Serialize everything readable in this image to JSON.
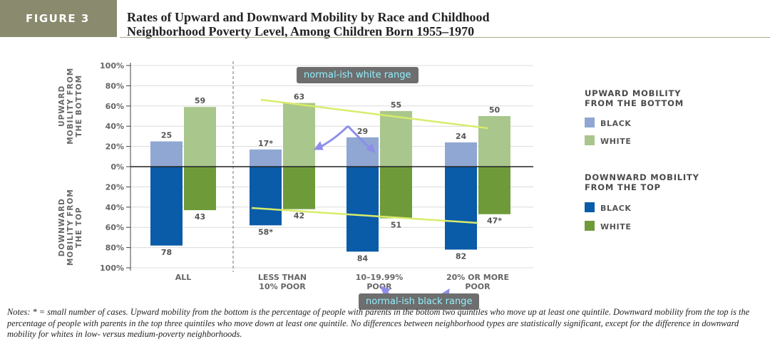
{
  "figure": {
    "label": "FIGURE 3",
    "title_line1": "Rates of Upward and Downward Mobility by Race and Childhood",
    "title_line2": "Neighborhood Poverty Level, Among Children Born 1955–1970"
  },
  "chart_data": {
    "type": "bar",
    "categories": [
      [
        "ALL"
      ],
      [
        "LESS THAN",
        "10% POOR"
      ],
      [
        "10–19.99%",
        "POOR"
      ],
      [
        "20% OR MORE",
        "POOR"
      ]
    ],
    "y_axis": {
      "ticks": [
        "100%",
        "80%",
        "60%",
        "40%",
        "20%",
        "0%",
        "20%",
        "40%",
        "60%",
        "80%",
        "100%"
      ],
      "upper_label": [
        "UPWARD",
        "MOBILITY FROM",
        "THE BOTTOM"
      ],
      "lower_label": [
        "DOWNWARD",
        "MOBILITY FROM",
        "THE TOP"
      ],
      "ylim": [
        -100,
        100
      ]
    },
    "upward": {
      "black": [
        25,
        17,
        29,
        24
      ],
      "white": [
        59,
        63,
        55,
        50
      ],
      "black_labels": [
        "25",
        "17*",
        "29",
        "24"
      ],
      "white_labels": [
        "59",
        "63",
        "55",
        "50"
      ]
    },
    "downward": {
      "black": [
        78,
        58,
        84,
        82
      ],
      "white": [
        43,
        42,
        51,
        47
      ],
      "black_labels": [
        "78",
        "58*",
        "84",
        "82"
      ],
      "white_labels": [
        "43",
        "42",
        "51",
        "47*"
      ]
    },
    "legend": {
      "upward_title": [
        "UPWARD MOBILITY",
        "FROM THE BOTTOM"
      ],
      "downward_title": [
        "DOWNWARD MOBILITY",
        "FROM THE TOP"
      ],
      "black_label": "BLACK",
      "white_label": "WHITE"
    },
    "colors": {
      "up_black": "#8fa7d2",
      "up_white": "#a9c68c",
      "down_black": "#0a5ba8",
      "down_white": "#6f9a3a",
      "legend_title": "#4a4a4a"
    }
  },
  "annotations": {
    "white_range_label": "normal-ish white range",
    "black_range_label": "normal-ish black range",
    "trend_line_color": "#d8ec6a",
    "arrow_color": "#8e8ee8"
  },
  "notes": {
    "text": "Notes: * = small number of cases. Upward mobility from the bottom is the percentage of people with parents in the bottom two quintiles who move up at least one quintile. Downward mobility from the top is the percentage of people with parents in the top three quintiles who move down at least one quintile. No differences between neighborhood types are statistically significant, except for the difference in downward mobility for whites in low- versus medium-poverty neighborhoods."
  }
}
